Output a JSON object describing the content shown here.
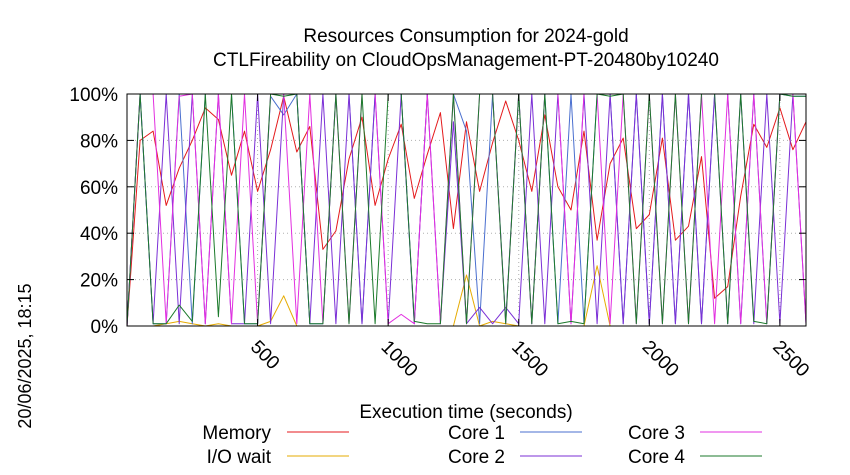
{
  "chart_data": {
    "type": "line",
    "title": "Resources Consumption for 2024-gold",
    "subtitle": "CTLFireability on CloudOpsManagement-PT-20480by10240",
    "xlabel": "Execution time (seconds)",
    "ylabel": "",
    "xlim": [
      0,
      2600
    ],
    "ylim": [
      0,
      100
    ],
    "x_ticks": [
      500,
      1000,
      1500,
      2000,
      2500
    ],
    "x_tick_labels": [
      "500",
      "1000",
      "1500",
      "2000",
      "2500"
    ],
    "y_ticks": [
      0,
      20,
      40,
      60,
      80,
      100
    ],
    "y_tick_labels": [
      "0%",
      "20%",
      "40%",
      "60%",
      "80%",
      "100%"
    ],
    "grid": true,
    "legend": "bottom",
    "timestamp": "20/06/2025, 18:15",
    "series": [
      {
        "name": "Memory",
        "color": "#e41a1c",
        "x": [
          0,
          50,
          100,
          150,
          200,
          250,
          300,
          350,
          400,
          450,
          500,
          550,
          600,
          650,
          700,
          750,
          800,
          850,
          900,
          950,
          1000,
          1050,
          1100,
          1150,
          1200,
          1250,
          1300,
          1350,
          1400,
          1450,
          1500,
          1550,
          1600,
          1650,
          1700,
          1750,
          1800,
          1850,
          1900,
          1950,
          2000,
          2050,
          2100,
          2150,
          2200,
          2250,
          2300,
          2350,
          2400,
          2450,
          2500,
          2550,
          2600
        ],
        "y": [
          0,
          80,
          84,
          52,
          68,
          80,
          94,
          89,
          65,
          84,
          58,
          76,
          99,
          75,
          86,
          33,
          41,
          72,
          90,
          52,
          72,
          87,
          55,
          74,
          92,
          42,
          88,
          58,
          79,
          97,
          80,
          58,
          91,
          60,
          50,
          84,
          37,
          70,
          81,
          42,
          48,
          81,
          37,
          43,
          73,
          12,
          17,
          56,
          87,
          77,
          94,
          76,
          88
        ]
      },
      {
        "name": "I/O wait",
        "color": "#e6ab02",
        "x": [
          0,
          50,
          100,
          150,
          200,
          250,
          300,
          350,
          400,
          450,
          500,
          550,
          600,
          650,
          700,
          750,
          800,
          850,
          900,
          950,
          1000,
          1050,
          1100,
          1150,
          1200,
          1250,
          1300,
          1350,
          1400,
          1450,
          1500,
          1550,
          1600,
          1650,
          1700,
          1750,
          1800,
          1850,
          1900,
          1950,
          2000,
          2050,
          2100,
          2150,
          2200,
          2250,
          2300,
          2350,
          2400,
          2450,
          2500,
          2550,
          2600
        ],
        "y": [
          0,
          0,
          0,
          1,
          2,
          1,
          0,
          1,
          0,
          0,
          0,
          2,
          13,
          0,
          0,
          0,
          0,
          0,
          0,
          0,
          0,
          0,
          0,
          0,
          0,
          0,
          22,
          0,
          2,
          1,
          0,
          0,
          0,
          0,
          0,
          0,
          26,
          0,
          0,
          0,
          0,
          0,
          0,
          0,
          0,
          0,
          0,
          0,
          0,
          0,
          0,
          0,
          0
        ]
      },
      {
        "name": "Core 1",
        "color": "#4a6fcf",
        "x": [
          0,
          50,
          100,
          150,
          200,
          250,
          300,
          350,
          400,
          450,
          500,
          550,
          600,
          650,
          700,
          750,
          800,
          850,
          900,
          950,
          1000,
          1050,
          1100,
          1150,
          1200,
          1250,
          1300,
          1350,
          1400,
          1450,
          1500,
          1550,
          1600,
          1650,
          1700,
          1750,
          1800,
          1850,
          1900,
          1950,
          2000,
          2050,
          2100,
          2150,
          2200,
          2250,
          2300,
          2350,
          2400,
          2450,
          2500,
          2550,
          2600
        ],
        "y": [
          0,
          100,
          1,
          1,
          100,
          1,
          100,
          100,
          100,
          1,
          1,
          99,
          91,
          100,
          1,
          1,
          100,
          100,
          1,
          100,
          100,
          100,
          1,
          100,
          100,
          100,
          84,
          1,
          100,
          2,
          100,
          1,
          100,
          1,
          100,
          1,
          100,
          100,
          1,
          100,
          1,
          100,
          1,
          100,
          1,
          100,
          100,
          1,
          100,
          1,
          100,
          99,
          99
        ]
      },
      {
        "name": "Core 2",
        "color": "#7b2fd6",
        "x": [
          0,
          50,
          100,
          150,
          200,
          250,
          300,
          350,
          400,
          450,
          500,
          550,
          600,
          650,
          700,
          750,
          800,
          850,
          900,
          950,
          1000,
          1050,
          1100,
          1150,
          1200,
          1250,
          1300,
          1350,
          1400,
          1450,
          1500,
          1550,
          1600,
          1650,
          1700,
          1750,
          1800,
          1850,
          1900,
          1950,
          2000,
          2050,
          2100,
          2150,
          2200,
          2250,
          2300,
          2350,
          2400,
          2450,
          2500,
          2550,
          2600
        ],
        "y": [
          0,
          100,
          1,
          100,
          1,
          100,
          1,
          100,
          1,
          1,
          100,
          1,
          100,
          100,
          1,
          100,
          1,
          100,
          1,
          100,
          1,
          100,
          1,
          100,
          1,
          88,
          1,
          8,
          1,
          8,
          1,
          100,
          1,
          100,
          1,
          100,
          1,
          100,
          1,
          100,
          1,
          100,
          1,
          100,
          1,
          100,
          1,
          100,
          1,
          100,
          1,
          100,
          1
        ]
      },
      {
        "name": "Core 3",
        "color": "#e22fe0",
        "x": [
          0,
          50,
          100,
          150,
          200,
          250,
          300,
          350,
          400,
          450,
          500,
          550,
          600,
          650,
          700,
          750,
          800,
          850,
          900,
          950,
          1000,
          1050,
          1100,
          1150,
          1200,
          1250,
          1300,
          1350,
          1400,
          1450,
          1500,
          1550,
          1600,
          1650,
          1700,
          1750,
          1800,
          1850,
          1900,
          1950,
          2000,
          2050,
          2100,
          2150,
          2200,
          2250,
          2300,
          2350,
          2400,
          2450,
          2500,
          2550,
          2600
        ],
        "y": [
          0,
          100,
          100,
          1,
          99,
          100,
          1,
          100,
          1,
          100,
          1,
          100,
          100,
          1,
          100,
          1,
          100,
          1,
          100,
          100,
          1,
          5,
          1,
          100,
          1,
          100,
          1,
          100,
          100,
          1,
          100,
          1,
          100,
          100,
          1,
          100,
          100,
          1,
          100,
          1,
          100,
          1,
          100,
          1,
          100,
          1,
          100,
          1,
          100,
          1,
          100,
          100,
          1
        ]
      },
      {
        "name": "Core 4",
        "color": "#1b7a2b",
        "x": [
          0,
          50,
          100,
          150,
          200,
          250,
          300,
          350,
          400,
          450,
          500,
          550,
          600,
          650,
          700,
          750,
          800,
          850,
          900,
          950,
          1000,
          1050,
          1100,
          1150,
          1200,
          1250,
          1300,
          1350,
          1400,
          1450,
          1500,
          1550,
          1600,
          1650,
          1700,
          1750,
          1800,
          1850,
          1900,
          1950,
          2000,
          2050,
          2100,
          2150,
          2200,
          2250,
          2300,
          2350,
          2400,
          2450,
          2500,
          2550,
          2600
        ],
        "y": [
          0,
          100,
          1,
          1,
          9,
          2,
          100,
          4,
          100,
          1,
          1,
          100,
          99,
          100,
          1,
          1,
          100,
          1,
          100,
          1,
          100,
          100,
          2,
          1,
          1,
          100,
          1,
          100,
          100,
          1,
          100,
          1,
          100,
          1,
          2,
          1,
          100,
          99,
          100,
          1,
          100,
          1,
          100,
          1,
          100,
          100,
          1,
          100,
          2,
          1,
          100,
          99,
          99
        ]
      }
    ]
  }
}
